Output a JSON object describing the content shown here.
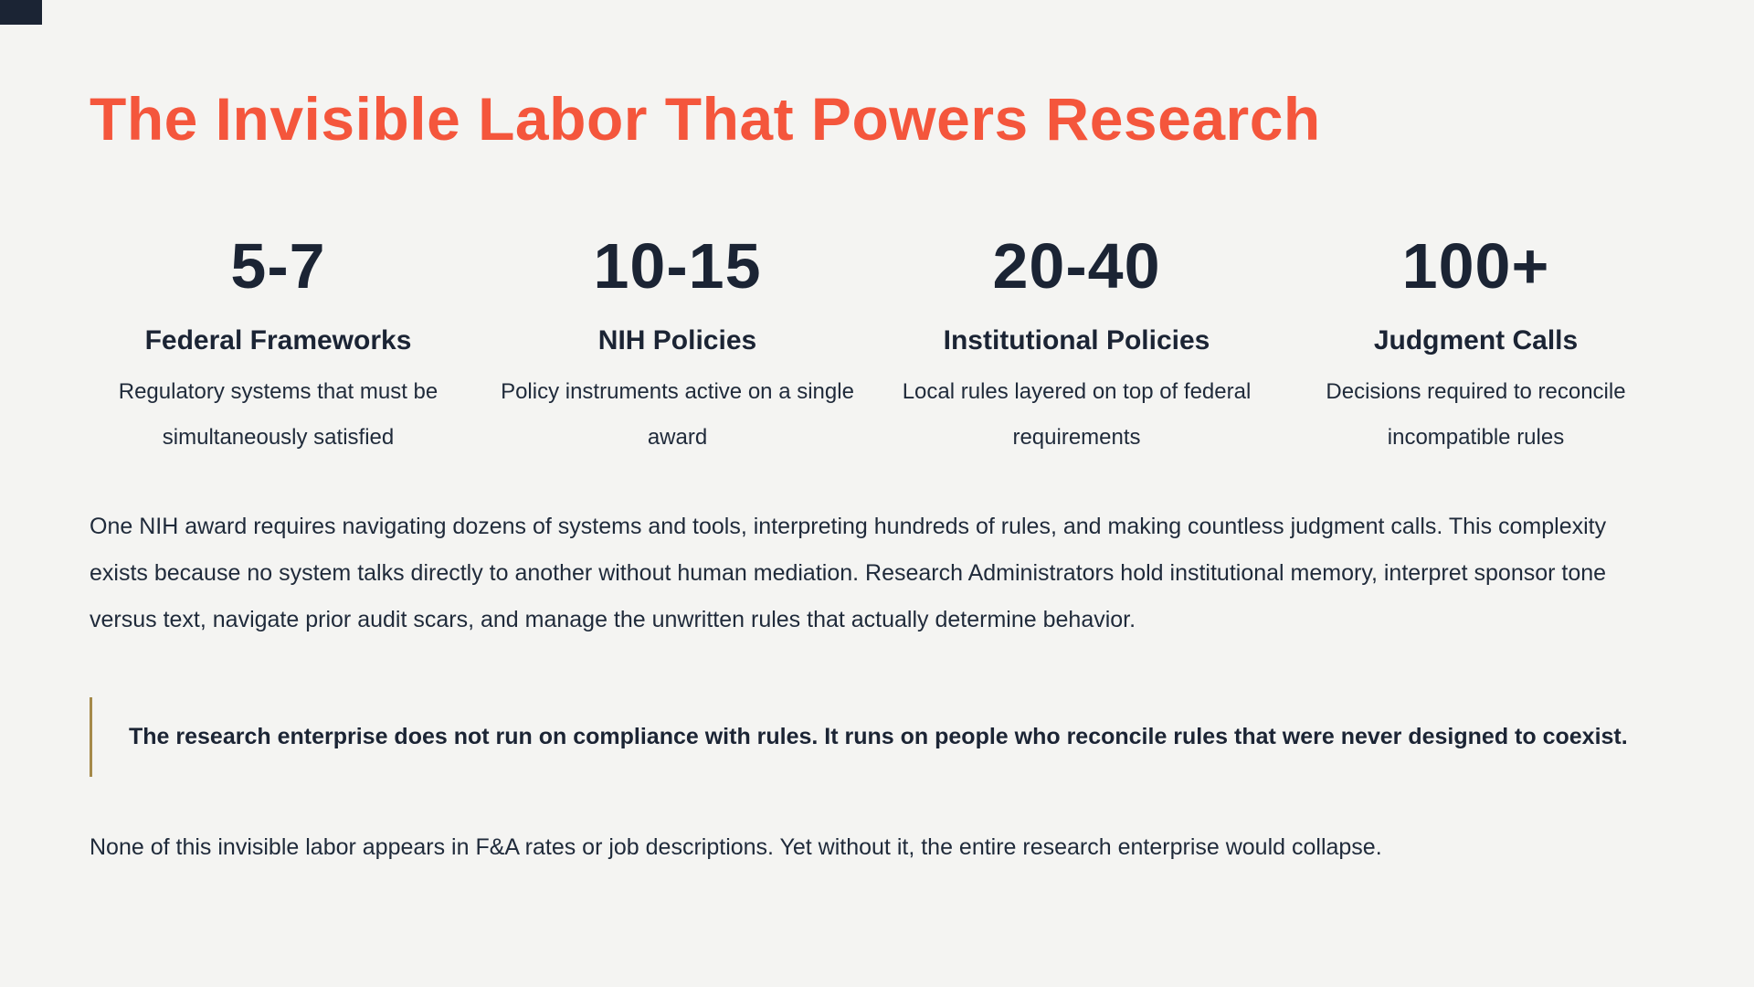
{
  "page": {
    "background_color": "#f4f4f2",
    "text_color": "#1b2434",
    "accent_color": "#f4563c",
    "quote_border_color": "#a58a4a"
  },
  "title": {
    "text": "The Invisible Labor That Powers Research"
  },
  "stats": [
    {
      "value": "5-7",
      "label": "Federal Frameworks",
      "description": "Regulatory systems that must be simultaneously satisfied"
    },
    {
      "value": "10-15",
      "label": "NIH Policies",
      "description": "Policy instruments active on a single award"
    },
    {
      "value": "20-40",
      "label": "Institutional Policies",
      "description": "Local rules layered on top of federal requirements"
    },
    {
      "value": "100+",
      "label": "Judgment Calls",
      "description": "Decisions required to reconcile incompatible rules"
    }
  ],
  "body": {
    "paragraph1": "One NIH award requires navigating dozens of systems and tools, interpreting hundreds of rules, and making countless judgment calls. This complexity exists because no system talks directly to another without human mediation. Research Administrators hold institutional memory, interpret sponsor tone versus text, navigate prior audit scars, and manage the unwritten rules that actually determine behavior.",
    "quote": "The research enterprise does not run on compliance with rules. It runs on people who reconcile rules that were never designed to coexist.",
    "paragraph2": "None of this invisible labor appears in F&A rates or job descriptions. Yet without it, the entire research enterprise would collapse."
  }
}
